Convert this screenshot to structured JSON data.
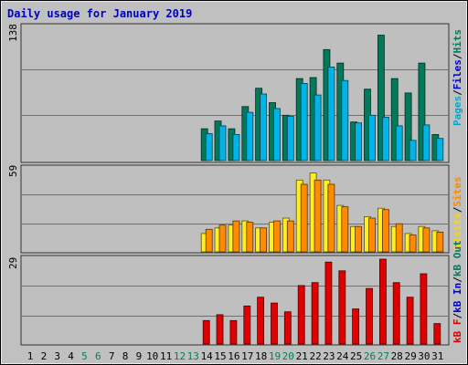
{
  "chart_data": [
    {
      "type": "bar",
      "title": "Daily usage for January 2019",
      "categories": [
        "1",
        "2",
        "3",
        "4",
        "5",
        "6",
        "7",
        "8",
        "9",
        "10",
        "11",
        "12",
        "13",
        "14",
        "15",
        "16",
        "17",
        "18",
        "19",
        "20",
        "21",
        "22",
        "23",
        "24",
        "25",
        "26",
        "27",
        "28",
        "29",
        "30",
        "31"
      ],
      "weekend_days": [
        "5",
        "6",
        "12",
        "13",
        "19",
        "20",
        "26",
        "27"
      ],
      "category_label_colors": {
        "weekday": "#000000",
        "weekend": "#00805c"
      },
      "ytick_max": "138",
      "ylim": [
        0,
        138
      ],
      "legend": [
        {
          "label": "Pages",
          "color": "#00aacc"
        },
        {
          "label": "/",
          "color": "#000000"
        },
        {
          "label": "Files",
          "color": "#0000cc"
        },
        {
          "label": "/",
          "color": "#000000"
        },
        {
          "label": "Hits",
          "color": "#007a5a"
        }
      ],
      "series": [
        {
          "name": "Hits",
          "color": "#007a5a",
          "values": [
            0,
            0,
            0,
            0,
            0,
            0,
            0,
            0,
            0,
            0,
            0,
            0,
            0,
            33,
            41,
            33,
            56,
            75,
            60,
            47,
            85,
            86,
            115,
            101,
            40,
            74,
            130,
            85,
            70,
            101,
            27
          ]
        },
        {
          "name": "Pages",
          "color": "#00b4e8",
          "values": [
            0,
            0,
            0,
            0,
            0,
            0,
            0,
            0,
            0,
            0,
            0,
            0,
            0,
            28,
            36,
            27,
            50,
            69,
            54,
            46,
            80,
            68,
            97,
            83,
            39,
            47,
            45,
            36,
            21,
            37,
            23
          ]
        }
      ]
    },
    {
      "type": "bar",
      "ytick_max": "59",
      "ylim": [
        0,
        59
      ],
      "legend": [
        {
          "label": "Visits",
          "color": "#ffd700"
        },
        {
          "label": "/",
          "color": "#000000"
        },
        {
          "label": "Sites",
          "color": "#ff8800"
        }
      ],
      "series": [
        {
          "name": "Visits",
          "color": "#ffee22",
          "values": [
            0,
            0,
            0,
            0,
            0,
            0,
            0,
            0,
            0,
            0,
            0,
            0,
            0,
            13,
            17,
            19,
            22,
            17,
            21,
            24,
            51,
            56,
            51,
            33,
            18,
            25,
            31,
            18,
            13,
            18,
            15
          ]
        },
        {
          "name": "Sites",
          "color": "#ff8c00",
          "values": [
            0,
            0,
            0,
            0,
            0,
            0,
            0,
            0,
            0,
            0,
            0,
            0,
            0,
            16,
            19,
            22,
            21,
            17,
            22,
            22,
            48,
            51,
            48,
            32,
            18,
            24,
            30,
            20,
            12,
            17,
            14
          ]
        }
      ]
    },
    {
      "type": "bar",
      "ytick_max": "29",
      "ylim": [
        0,
        29
      ],
      "legend": [
        {
          "label": "kB F",
          "color": "#dd0000"
        },
        {
          "label": "/",
          "color": "#000000"
        },
        {
          "label": "kB In",
          "color": "#0000cc"
        },
        {
          "label": "/",
          "color": "#000000"
        },
        {
          "label": "kB Out",
          "color": "#007a5a"
        }
      ],
      "series": [
        {
          "name": "kB F",
          "color": "#e00000",
          "values": [
            0,
            0,
            0,
            0,
            0,
            0,
            0,
            0,
            0,
            0,
            0,
            0,
            0,
            8,
            10,
            8,
            13,
            16,
            14,
            11,
            20,
            21,
            28,
            25,
            12,
            19,
            29,
            21,
            16,
            24,
            7
          ]
        }
      ]
    }
  ]
}
